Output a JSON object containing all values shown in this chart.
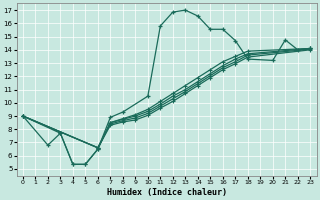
{
  "xlabel": "Humidex (Indice chaleur)",
  "bg_color": "#c8e8e0",
  "grid_color": "#b0d8d0",
  "line_color": "#1a6b5a",
  "xlim": [
    -0.5,
    23.5
  ],
  "ylim": [
    4.5,
    17.5
  ],
  "xticks": [
    0,
    1,
    2,
    3,
    4,
    5,
    6,
    7,
    8,
    9,
    10,
    11,
    12,
    13,
    14,
    15,
    16,
    17,
    18,
    19,
    20,
    21,
    22,
    23
  ],
  "yticks": [
    5,
    6,
    7,
    8,
    9,
    10,
    11,
    12,
    13,
    14,
    15,
    16,
    17
  ],
  "curve_main": {
    "x": [
      0,
      2,
      3,
      4,
      5,
      6,
      7,
      8,
      10,
      11,
      12,
      13,
      14,
      15,
      16,
      17,
      18,
      20,
      21,
      22,
      23
    ],
    "y": [
      9.0,
      6.8,
      7.7,
      5.35,
      5.35,
      6.5,
      8.9,
      9.3,
      10.5,
      15.8,
      16.85,
      17.0,
      16.55,
      15.55,
      15.55,
      14.7,
      13.3,
      13.2,
      14.75,
      14.0,
      14.1
    ]
  },
  "linear_lines": [
    {
      "x": [
        0,
        3,
        4,
        5,
        6,
        7,
        8,
        9,
        10,
        11,
        12,
        13,
        14,
        15,
        16,
        17,
        18,
        23
      ],
      "y": [
        9.0,
        7.7,
        5.35,
        5.35,
        6.5,
        8.5,
        8.8,
        9.1,
        9.5,
        10.1,
        10.7,
        11.3,
        11.9,
        12.5,
        13.1,
        13.5,
        13.9,
        14.1
      ]
    },
    {
      "x": [
        0,
        6,
        7,
        8,
        9,
        10,
        11,
        12,
        13,
        14,
        15,
        16,
        17,
        18,
        23
      ],
      "y": [
        9.0,
        6.6,
        8.5,
        8.75,
        9.0,
        9.35,
        9.9,
        10.5,
        11.0,
        11.6,
        12.2,
        12.8,
        13.3,
        13.7,
        14.1
      ]
    },
    {
      "x": [
        0,
        6,
        7,
        8,
        9,
        10,
        11,
        12,
        13,
        14,
        15,
        16,
        17,
        18,
        23
      ],
      "y": [
        9.0,
        6.6,
        8.4,
        8.65,
        8.85,
        9.2,
        9.75,
        10.3,
        10.85,
        11.45,
        12.05,
        12.65,
        13.1,
        13.6,
        14.05
      ]
    },
    {
      "x": [
        0,
        6,
        7,
        8,
        9,
        10,
        11,
        12,
        13,
        14,
        15,
        16,
        17,
        18,
        23
      ],
      "y": [
        9.0,
        6.6,
        8.3,
        8.55,
        8.7,
        9.05,
        9.6,
        10.1,
        10.7,
        11.3,
        11.9,
        12.5,
        12.95,
        13.45,
        14.0
      ]
    }
  ]
}
